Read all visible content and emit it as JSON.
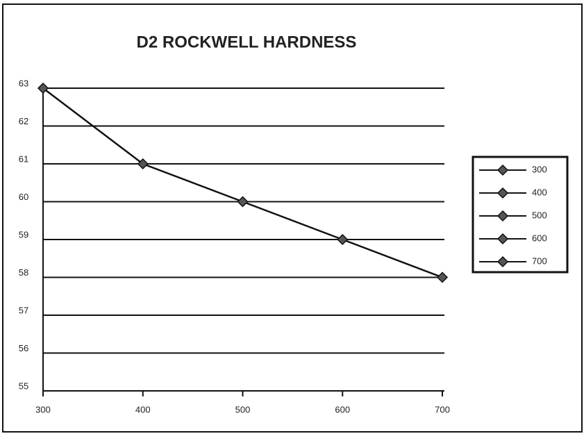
{
  "chart_data": {
    "type": "line",
    "title": "D2 ROCKWELL HARDNESS",
    "x": [
      300,
      400,
      500,
      600,
      700
    ],
    "series": [
      {
        "color": "#111111",
        "values": [
          63,
          61,
          60,
          59,
          58
        ]
      }
    ],
    "xlim": [
      300,
      700
    ],
    "xticks": [
      300,
      400,
      500,
      600,
      700
    ],
    "ylim": [
      55,
      63
    ],
    "yticks": [
      55,
      56,
      57,
      58,
      59,
      60,
      61,
      62,
      63
    ],
    "grid": true,
    "legend": [
      "300",
      "400",
      "500",
      "600",
      "700"
    ]
  }
}
